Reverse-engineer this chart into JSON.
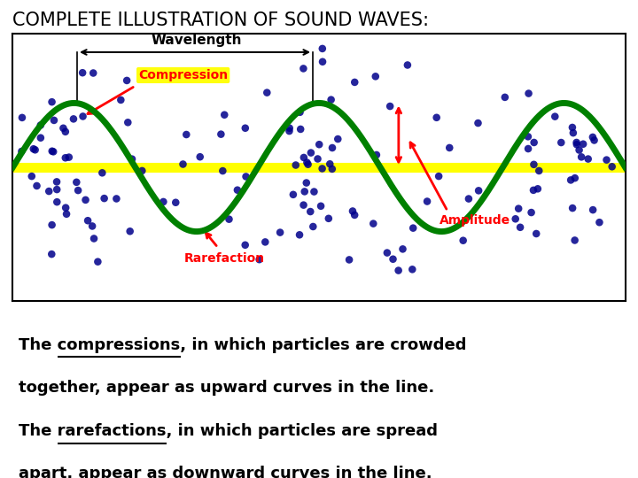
{
  "title": "COMPLETE ILLUSTRATION OF SOUND WAVES:",
  "title_fontsize": 15,
  "background_color": "#ffffff",
  "diagram_bg": "#ffffff",
  "wave_color": "#008000",
  "wave_lw": 5,
  "centerline_color": "#ffff00",
  "centerline_lw": 8,
  "dot_color": "#00008B",
  "dot_size": 38,
  "compression_label": "Compression",
  "rarefaction_label": "Rarefaction",
  "wavelength_label": "Wavelength",
  "amplitude_label": "Amplitude",
  "label_color_red": "#ff0000",
  "label_color_black": "#000000",
  "text_line1": "The compressions, in which particles are crowded",
  "text_line2": "together, appear as upward curves in the line.",
  "text_line3": "The rarefactions, in which particles are spread",
  "text_line4": "apart, appear as downward curves in the line.",
  "wave_amplitude": 1.2,
  "wave_freq": 2.5,
  "compression_centers": [
    1.0,
    5.0,
    9.0
  ],
  "rarefaction_centers": [
    3.0,
    7.0
  ],
  "n_compression_dots": 35,
  "n_rarefaction_dots": 12,
  "n_scatter_dots": 25
}
